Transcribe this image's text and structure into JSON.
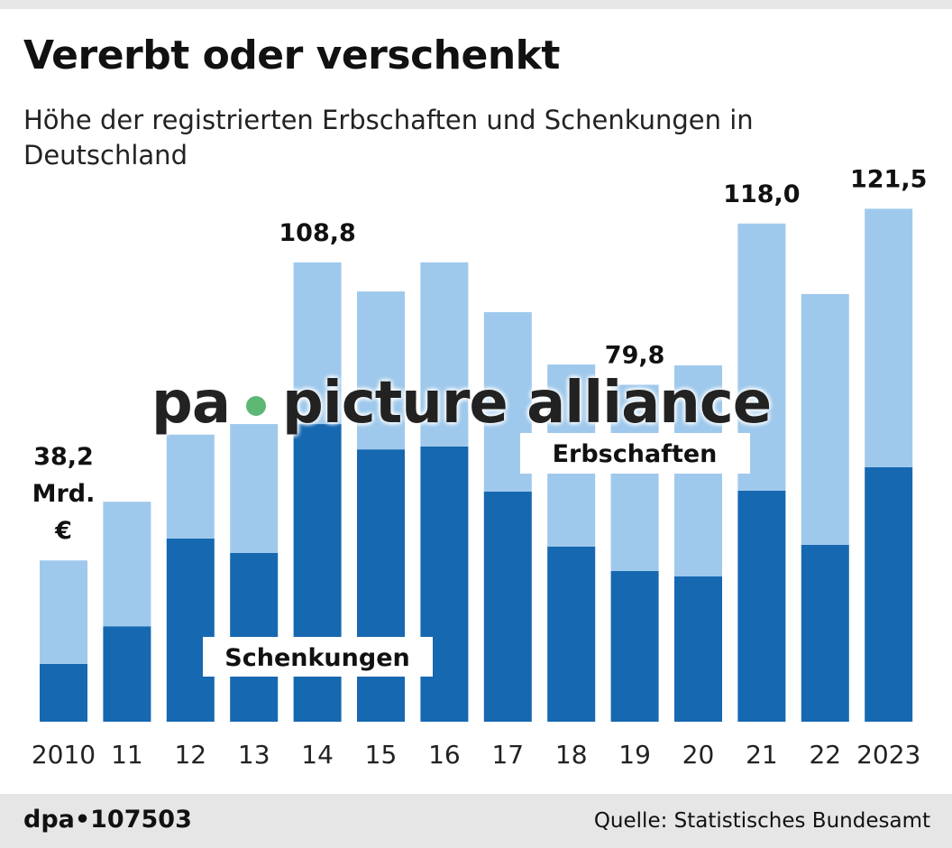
{
  "header": {
    "title": "Vererbt oder verschenkt",
    "subtitle": "Höhe der registrierten Erbschaften und Schenkungen in Deutschland"
  },
  "chart_data": {
    "type": "bar",
    "stacked": true,
    "title": "Vererbt oder verschenkt",
    "subtitle": "Höhe der registrierten Erbschaften und Schenkungen in Deutschland",
    "unit": "Mrd. €",
    "categories": [
      "2010",
      "11",
      "12",
      "13",
      "14",
      "15",
      "16",
      "17",
      "18",
      "19",
      "20",
      "21",
      "22",
      "2023"
    ],
    "series": [
      {
        "name": "Schenkungen",
        "color": "#1668b1",
        "values": [
          13.7,
          22.6,
          43.4,
          40.0,
          70.5,
          64.5,
          65.2,
          54.5,
          41.5,
          35.7,
          34.4,
          54.7,
          41.9,
          60.3
        ]
      },
      {
        "name": "Erbschaften",
        "color": "#9fc9ec",
        "values": [
          24.5,
          29.5,
          24.6,
          30.5,
          38.3,
          37.4,
          43.6,
          42.5,
          43.1,
          44.1,
          50.0,
          63.3,
          59.4,
          61.2
        ]
      }
    ],
    "totals": [
      38.2,
      52.1,
      68.0,
      70.5,
      108.8,
      101.9,
      108.8,
      97.0,
      84.6,
      79.8,
      84.4,
      118.0,
      101.3,
      121.5
    ],
    "data_labels": [
      {
        "index": 0,
        "text": "38,2"
      },
      {
        "index": 4,
        "text": "108,8"
      },
      {
        "index": 9,
        "text": "79,8"
      },
      {
        "index": 11,
        "text": "118,0"
      },
      {
        "index": 13,
        "text": "121,5"
      }
    ],
    "first_label_unit_lines": [
      "Mrd.",
      "€"
    ],
    "ylim": [
      0,
      125
    ],
    "grid": false,
    "legend": "inline labels"
  },
  "watermark": {
    "left": "pa",
    "right": "picture alliance"
  },
  "footer": {
    "id": "dpa•107503",
    "source": "Quelle: Statistisches Bundesamt"
  }
}
